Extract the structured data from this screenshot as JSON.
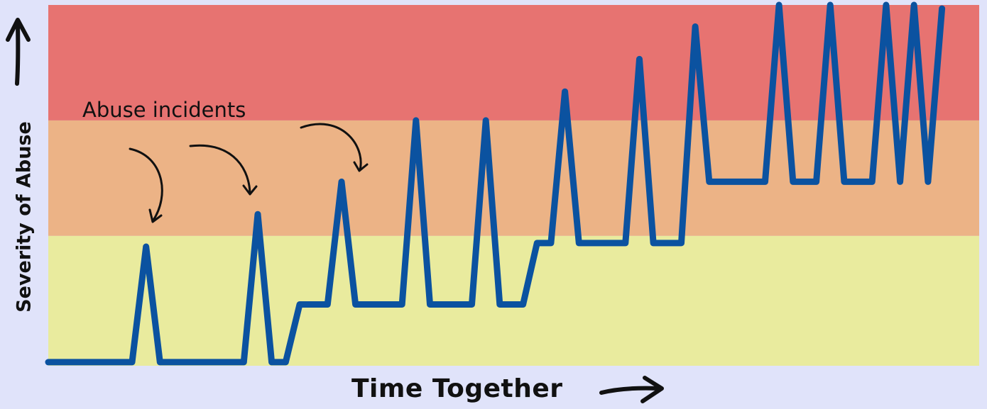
{
  "chart_data": {
    "type": "line",
    "title": "",
    "xlabel": "Time Together",
    "ylabel": "Severity of Abuse",
    "annotation": "Abuse incidents",
    "xlim": [
      0,
      100
    ],
    "ylim": [
      0,
      100
    ],
    "grid": false,
    "bands": [
      {
        "from": 0,
        "to": 36,
        "color": "#e9eb9e"
      },
      {
        "from": 36,
        "to": 68,
        "color": "#ecb386"
      },
      {
        "from": 68,
        "to": 100,
        "color": "#e77371"
      }
    ],
    "series": [
      {
        "color": "#0b52a0",
        "points": [
          [
            0,
            1
          ],
          [
            9,
            1
          ],
          [
            10.5,
            33
          ],
          [
            12,
            1
          ],
          [
            21,
            1
          ],
          [
            22.5,
            42
          ],
          [
            24,
            1
          ],
          [
            25.5,
            1
          ],
          [
            27,
            17
          ],
          [
            30,
            17
          ],
          [
            31.5,
            51
          ],
          [
            33,
            17
          ],
          [
            38,
            17
          ],
          [
            39.5,
            68
          ],
          [
            41,
            17
          ],
          [
            45.5,
            17
          ],
          [
            47,
            68
          ],
          [
            48.5,
            17
          ],
          [
            51,
            17
          ],
          [
            52.5,
            34
          ],
          [
            54,
            34
          ],
          [
            55.5,
            76
          ],
          [
            57,
            34
          ],
          [
            62,
            34
          ],
          [
            63.5,
            85
          ],
          [
            65,
            34
          ],
          [
            68,
            34
          ],
          [
            69.5,
            94
          ],
          [
            71,
            51
          ],
          [
            77,
            51
          ],
          [
            78.5,
            100
          ],
          [
            80,
            51
          ],
          [
            82.5,
            51
          ],
          [
            84,
            100
          ],
          [
            85.5,
            51
          ],
          [
            88.5,
            51
          ],
          [
            90,
            100
          ],
          [
            91.5,
            51
          ],
          [
            93,
            100
          ],
          [
            94.5,
            51
          ],
          [
            96,
            99
          ]
        ]
      }
    ],
    "annotation_color": "#111111",
    "axis_color": "#111111"
  }
}
